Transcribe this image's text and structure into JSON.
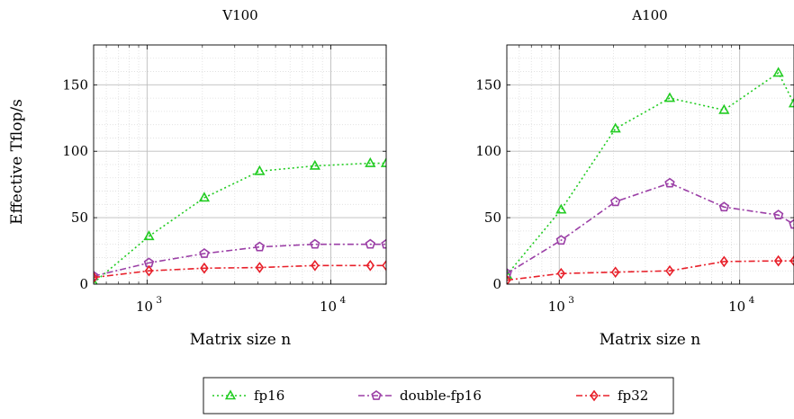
{
  "chart_data": [
    {
      "type": "line",
      "title": "V100",
      "xlabel": "Matrix size n",
      "ylabel": "Effective Tflop/s",
      "xscale": "log",
      "xlim": [
        512,
        20000
      ],
      "ylim": [
        0,
        180
      ],
      "xticks": [
        1000,
        10000
      ],
      "xtick_labels": [
        "10",
        "10"
      ],
      "xtick_exponents": [
        "3",
        "4"
      ],
      "yticks": [
        0,
        50,
        100,
        150
      ],
      "ytick_labels": [
        "0",
        "50",
        "100",
        "150"
      ],
      "grid": true,
      "x": [
        512,
        1024,
        2048,
        4096,
        8192,
        16384,
        20000
      ],
      "series": [
        {
          "name": "fp16",
          "values": [
            1,
            36,
            65,
            85,
            89,
            91,
            91
          ]
        },
        {
          "name": "double-fp16",
          "values": [
            6,
            16,
            23,
            28,
            30,
            30,
            30
          ]
        },
        {
          "name": "fp32",
          "values": [
            5,
            10,
            12,
            12.5,
            14,
            14,
            14
          ]
        }
      ]
    },
    {
      "type": "line",
      "title": "A100",
      "xlabel": "Matrix size n",
      "ylabel": "",
      "xscale": "log",
      "xlim": [
        512,
        20000
      ],
      "ylim": [
        0,
        180
      ],
      "xticks": [
        1000,
        10000
      ],
      "xtick_labels": [
        "10",
        "10"
      ],
      "xtick_exponents": [
        "3",
        "4"
      ],
      "yticks": [
        0,
        50,
        100,
        150
      ],
      "ytick_labels": [
        "0",
        "50",
        "100",
        "150"
      ],
      "grid": true,
      "x": [
        512,
        1024,
        2048,
        4096,
        8192,
        16384,
        20000
      ],
      "series": [
        {
          "name": "fp16",
          "values": [
            7,
            56,
            117,
            140,
            131,
            159,
            136
          ]
        },
        {
          "name": "double-fp16",
          "values": [
            8,
            33,
            62,
            76,
            58,
            52,
            45
          ]
        },
        {
          "name": "fp32",
          "values": [
            3,
            8,
            9,
            10,
            17,
            17.5,
            17.5
          ]
        }
      ]
    }
  ],
  "legend": {
    "placement": "bottom-center",
    "entries": [
      {
        "label": "fp16",
        "color": "#22cc22",
        "marker": "triangle",
        "dash": "dotted"
      },
      {
        "label": "double-fp16",
        "color": "#9b3fa6",
        "marker": "pentagon",
        "dash": "dash-dot"
      },
      {
        "label": "fp32",
        "color": "#e8202a",
        "marker": "diamond",
        "dash": "dash-dot"
      }
    ]
  },
  "colors": {
    "fp16": "#22cc22",
    "double-fp16": "#9b3fa6",
    "fp32": "#e8202a"
  }
}
